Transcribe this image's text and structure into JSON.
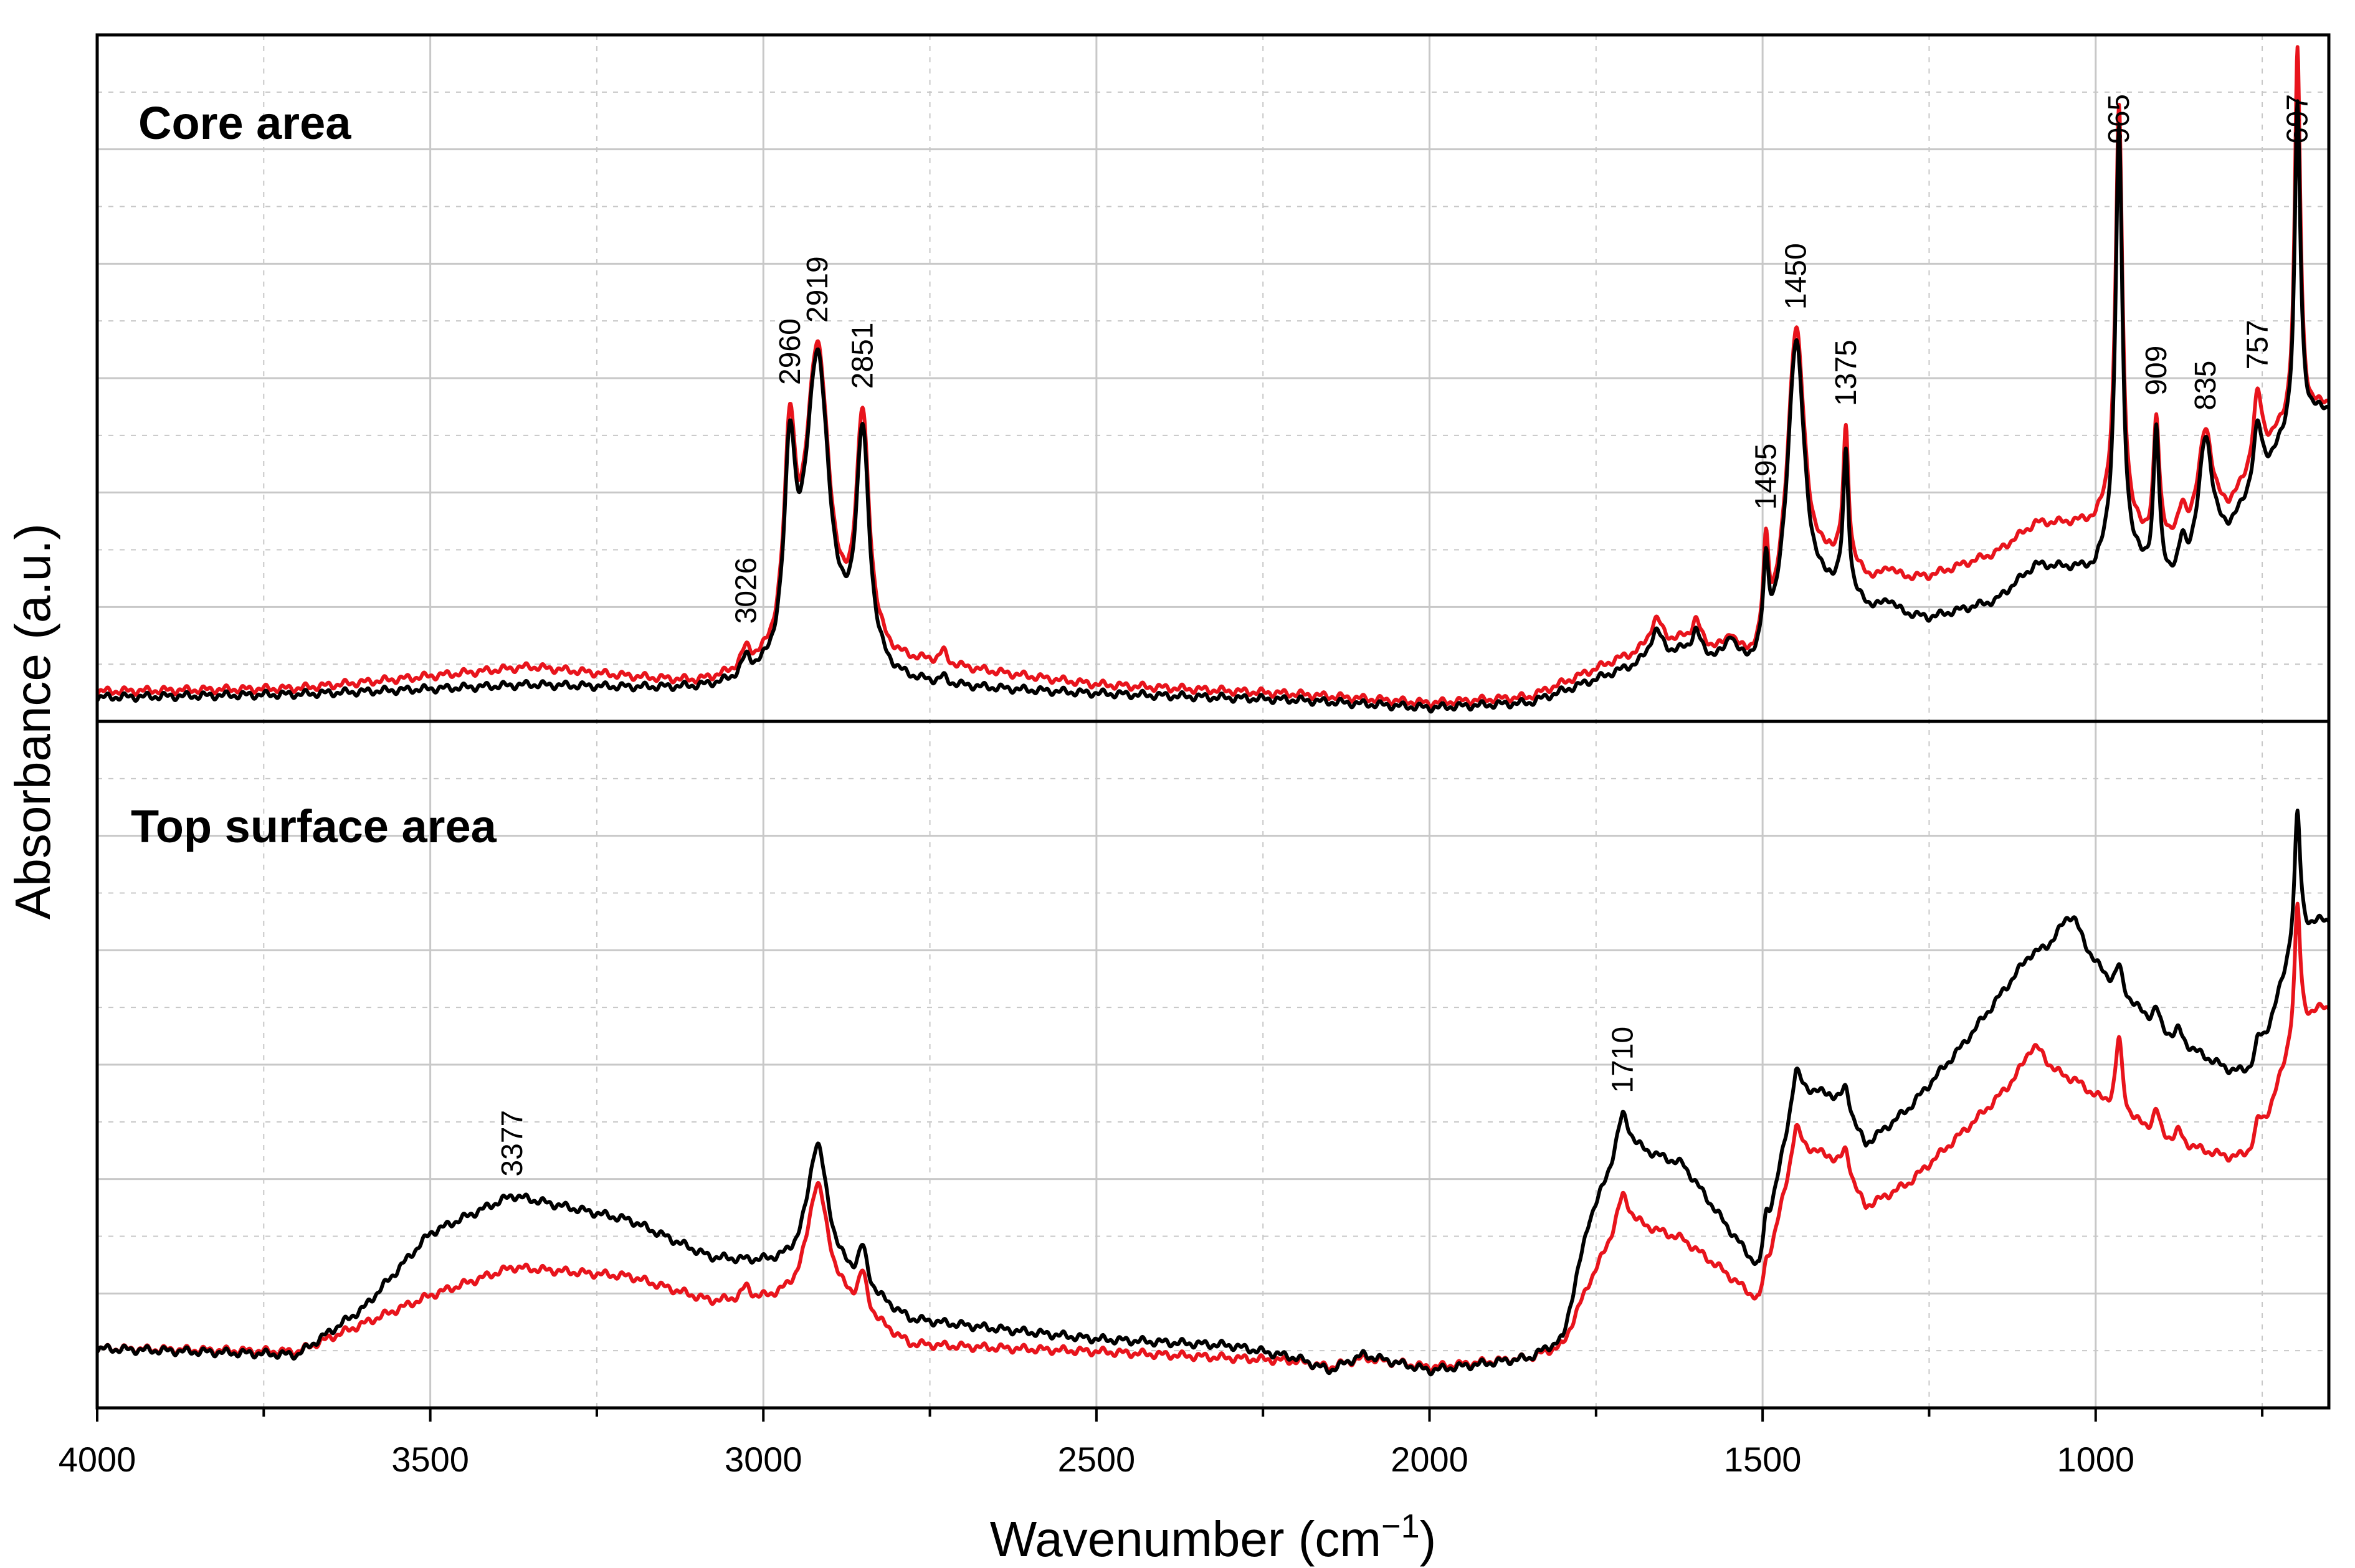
{
  "chart_data": {
    "type": "line",
    "title": "",
    "xlabel_main": "Wavenumber (cm",
    "xlabel_sup": "−1",
    "xlabel_end": ")",
    "ylabel": "Absorbance (a.u.)",
    "xlim": [
      4000,
      650
    ],
    "x_ticks": [
      4000,
      3500,
      3000,
      2500,
      2000,
      1500,
      1000
    ],
    "x_tick_labels": [
      "4000",
      "3500",
      "3000",
      "2500",
      "2000",
      "1500",
      "1000"
    ],
    "grid": true,
    "colors": {
      "series_1": "#000000",
      "series_2": "#e8141c",
      "grid": "#c8c8c8",
      "frame": "#000000"
    },
    "panels": [
      {
        "title": "Core area",
        "ylim": [
          0,
          1.15
        ],
        "peak_labels": [
          {
            "x": 3026,
            "label": "3026"
          },
          {
            "x": 2960,
            "label": "2960"
          },
          {
            "x": 2919,
            "label": "2919"
          },
          {
            "x": 2851,
            "label": "2851"
          },
          {
            "x": 1495,
            "label": "1495"
          },
          {
            "x": 1450,
            "label": "1450"
          },
          {
            "x": 1375,
            "label": "1375"
          },
          {
            "x": 965,
            "label": "965"
          },
          {
            "x": 909,
            "label": "909"
          },
          {
            "x": 835,
            "label": "835"
          },
          {
            "x": 757,
            "label": "757"
          },
          {
            "x": 697,
            "label": "697"
          }
        ],
        "series": [
          {
            "name": "black",
            "color": "#000000",
            "baseline": [
              [
                4000,
                0.04
              ],
              [
                3700,
                0.045
              ],
              [
                3350,
                0.06
              ],
              [
                3100,
                0.05
              ],
              [
                2750,
                0.055
              ],
              [
                2500,
                0.045
              ],
              [
                2200,
                0.035
              ],
              [
                2000,
                0.022
              ],
              [
                1850,
                0.03
              ],
              [
                1720,
                0.08
              ],
              [
                1620,
                0.11
              ],
              [
                1505,
                0.08
              ],
              [
                1400,
                0.2
              ],
              [
                1330,
                0.18
              ],
              [
                1250,
                0.17
              ],
              [
                1150,
                0.2
              ],
              [
                1090,
                0.26
              ],
              [
                1000,
                0.25
              ],
              [
                975,
                0.3
              ],
              [
                930,
                0.25
              ],
              [
                880,
                0.23
              ],
              [
                800,
                0.31
              ],
              [
                730,
                0.44
              ],
              [
                700,
                0.5
              ],
              [
                650,
                0.52
              ]
            ],
            "peaks": [
              [
                3026,
                0.03,
                9
              ],
              [
                2960,
                0.33,
                10
              ],
              [
                2919,
                0.54,
                22
              ],
              [
                2851,
                0.39,
                12
              ],
              [
                2730,
                0.01,
                6
              ],
              [
                1660,
                0.05,
                12
              ],
              [
                1600,
                0.04,
                8
              ],
              [
                1548,
                0.04,
                8
              ],
              [
                1495,
                0.14,
                5
              ],
              [
                1450,
                0.49,
                16
              ],
              [
                1375,
                0.24,
                5
              ],
              [
                1310,
                0.02,
                10
              ],
              [
                965,
                0.7,
                6
              ],
              [
                909,
                0.24,
                5
              ],
              [
                870,
                0.05,
                6
              ],
              [
                835,
                0.2,
                12
              ],
              [
                757,
                0.1,
                8
              ],
              [
                697,
                0.53,
                5
              ]
            ]
          },
          {
            "name": "red",
            "color": "#e8141c",
            "baseline": [
              [
                4000,
                0.05
              ],
              [
                3700,
                0.055
              ],
              [
                3350,
                0.09
              ],
              [
                3100,
                0.06
              ],
              [
                2750,
                0.09
              ],
              [
                2500,
                0.06
              ],
              [
                2200,
                0.045
              ],
              [
                2000,
                0.03
              ],
              [
                1850,
                0.04
              ],
              [
                1720,
                0.1
              ],
              [
                1620,
                0.13
              ],
              [
                1505,
                0.09
              ],
              [
                1400,
                0.25
              ],
              [
                1330,
                0.23
              ],
              [
                1250,
                0.24
              ],
              [
                1150,
                0.28
              ],
              [
                1090,
                0.33
              ],
              [
                1000,
                0.33
              ],
              [
                975,
                0.36
              ],
              [
                930,
                0.3
              ],
              [
                880,
                0.3
              ],
              [
                800,
                0.35
              ],
              [
                730,
                0.47
              ],
              [
                700,
                0.5
              ],
              [
                650,
                0.53
              ]
            ],
            "peaks": [
              [
                3026,
                0.03,
                9
              ],
              [
                2960,
                0.34,
                10
              ],
              [
                2919,
                0.53,
                22
              ],
              [
                2851,
                0.39,
                12
              ],
              [
                2730,
                0.02,
                6
              ],
              [
                1660,
                0.05,
                12
              ],
              [
                1600,
                0.04,
                8
              ],
              [
                1548,
                0.03,
                8
              ],
              [
                1495,
                0.16,
                5
              ],
              [
                1450,
                0.48,
                16
              ],
              [
                1375,
                0.23,
                5
              ],
              [
                1310,
                0.02,
                10
              ],
              [
                965,
                0.68,
                6
              ],
              [
                909,
                0.2,
                5
              ],
              [
                870,
                0.04,
                6
              ],
              [
                835,
                0.16,
                12
              ],
              [
                757,
                0.12,
                8
              ],
              [
                697,
                0.62,
                5
              ]
            ]
          }
        ]
      },
      {
        "title": "Top surface area",
        "ylim": [
          0,
          1.1
        ],
        "peak_labels": [
          {
            "x": 3377,
            "label": "3377"
          },
          {
            "x": 1710,
            "label": "1710"
          }
        ],
        "series": [
          {
            "name": "black",
            "color": "#000000",
            "baseline": [
              [
                4000,
                0.095
              ],
              [
                3700,
                0.085
              ],
              [
                3600,
                0.16
              ],
              [
                3500,
                0.28
              ],
              [
                3377,
                0.34
              ],
              [
                3200,
                0.3
              ],
              [
                3080,
                0.24
              ],
              [
                3000,
                0.23
              ],
              [
                2900,
                0.22
              ],
              [
                2780,
                0.14
              ],
              [
                2500,
                0.11
              ],
              [
                2300,
                0.1
              ],
              [
                2200,
                0.08
              ],
              [
                2150,
                0.06
              ],
              [
                2100,
                0.085
              ],
              [
                2000,
                0.06
              ],
              [
                1850,
                0.08
              ],
              [
                1800,
                0.11
              ],
              [
                1760,
                0.3
              ],
              [
                1710,
                0.42
              ],
              [
                1620,
                0.39
              ],
              [
                1560,
                0.3
              ],
              [
                1505,
                0.22
              ],
              [
                1450,
                0.51
              ],
              [
                1400,
                0.5
              ],
              [
                1345,
                0.42
              ],
              [
                1280,
                0.48
              ],
              [
                1200,
                0.58
              ],
              [
                1100,
                0.72
              ],
              [
                1030,
                0.74
              ],
              [
                980,
                0.68
              ],
              [
                900,
                0.6
              ],
              [
                800,
                0.54
              ],
              [
                760,
                0.53
              ],
              [
                730,
                0.64
              ],
              [
                700,
                0.75
              ],
              [
                660,
                0.78
              ],
              [
                650,
                0.78
              ]
            ],
            "peaks": [
              [
                2919,
                0.2,
                18
              ],
              [
                2851,
                0.06,
                8
              ],
              [
                1710,
                0.05,
                12
              ],
              [
                1495,
                0.04,
                5
              ],
              [
                1450,
                0.03,
                8
              ],
              [
                1375,
                0.05,
                8
              ],
              [
                1040,
                0.05,
                20
              ],
              [
                965,
                0.04,
                6
              ],
              [
                909,
                0.03,
                6
              ],
              [
                875,
                0.02,
                6
              ],
              [
                757,
                0.05,
                8
              ],
              [
                697,
                0.2,
                5
              ]
            ]
          },
          {
            "name": "red",
            "color": "#e8141c",
            "baseline": [
              [
                4000,
                0.095
              ],
              [
                3700,
                0.09
              ],
              [
                3500,
                0.18
              ],
              [
                3377,
                0.225
              ],
              [
                3200,
                0.21
              ],
              [
                3080,
                0.17
              ],
              [
                3000,
                0.17
              ],
              [
                2900,
                0.18
              ],
              [
                2780,
                0.1
              ],
              [
                2500,
                0.09
              ],
              [
                2300,
                0.08
              ],
              [
                2200,
                0.075
              ],
              [
                2150,
                0.065
              ],
              [
                2100,
                0.08
              ],
              [
                2000,
                0.065
              ],
              [
                1850,
                0.08
              ],
              [
                1800,
                0.1
              ],
              [
                1760,
                0.2
              ],
              [
                1710,
                0.3
              ],
              [
                1620,
                0.27
              ],
              [
                1560,
                0.22
              ],
              [
                1505,
                0.17
              ],
              [
                1450,
                0.42
              ],
              [
                1400,
                0.4
              ],
              [
                1345,
                0.32
              ],
              [
                1280,
                0.36
              ],
              [
                1200,
                0.44
              ],
              [
                1100,
                0.54
              ],
              [
                1030,
                0.52
              ],
              [
                980,
                0.48
              ],
              [
                900,
                0.43
              ],
              [
                800,
                0.4
              ],
              [
                760,
                0.4
              ],
              [
                730,
                0.5
              ],
              [
                700,
                0.6
              ],
              [
                660,
                0.64
              ],
              [
                650,
                0.64
              ]
            ],
            "peaks": [
              [
                3026,
                0.02,
                8
              ],
              [
                2919,
                0.18,
                18
              ],
              [
                2851,
                0.06,
                8
              ],
              [
                1710,
                0.04,
                12
              ],
              [
                1495,
                0.02,
                5
              ],
              [
                1450,
                0.03,
                8
              ],
              [
                1375,
                0.05,
                8
              ],
              [
                1090,
                0.04,
                20
              ],
              [
                965,
                0.12,
                6
              ],
              [
                909,
                0.04,
                6
              ],
              [
                875,
                0.02,
                6
              ],
              [
                757,
                0.05,
                8
              ],
              [
                697,
                0.2,
                5
              ]
            ]
          }
        ]
      }
    ]
  }
}
